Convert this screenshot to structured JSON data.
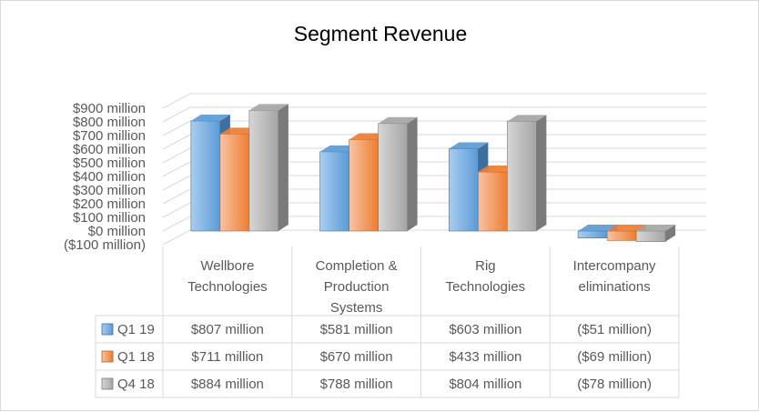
{
  "chart_data": {
    "type": "bar",
    "title": "Segment Revenue",
    "categories": [
      "Wellbore Technologies",
      "Completion & Production Systems",
      "Rig Technologies",
      "Intercompany eliminations"
    ],
    "category_lines": [
      [
        "Wellbore",
        "Technologies"
      ],
      [
        "Completion &",
        "Production",
        "Systems"
      ],
      [
        "Rig",
        "Technologies"
      ],
      [
        "Intercompany",
        "eliminations"
      ]
    ],
    "series": [
      {
        "name": "Q1 19",
        "values": [
          807,
          581,
          603,
          -51
        ],
        "labels": [
          "$807 million",
          "$581 million",
          "$603 million",
          "($51 million)"
        ]
      },
      {
        "name": "Q1 18",
        "values": [
          711,
          670,
          433,
          -69
        ],
        "labels": [
          "$711 million",
          "$670 million",
          "$433 million",
          "($69 million)"
        ]
      },
      {
        "name": "Q4 18",
        "values": [
          884,
          788,
          804,
          -78
        ],
        "labels": [
          "$884 million",
          "$788 million",
          "$804 million",
          "($78 million)"
        ]
      }
    ],
    "yticks": [
      -100,
      0,
      100,
      200,
      300,
      400,
      500,
      600,
      700,
      800,
      900
    ],
    "ytick_labels": [
      "($100 million)",
      "$0 million",
      "$100 million",
      "$200 million",
      "$300 million",
      "$400 million",
      "$500 million",
      "$600 million",
      "$700 million",
      "$800 million",
      "$900 million"
    ],
    "ylim": [
      -100,
      900
    ],
    "unit": "$ million",
    "grid": true,
    "legend": "data-table",
    "style": "3d-clustered-column",
    "colors": {
      "series": [
        "#5b9bd5",
        "#ed7d31",
        "#a5a5a5"
      ],
      "series_light": [
        "#a9cdf1",
        "#f9c3a3",
        "#d6d6d6"
      ],
      "series_dark": [
        "#3f6f9f",
        "#b55d25",
        "#7a7a7a"
      ],
      "gridline": "#d9d9d9",
      "text": "#595959",
      "title": "#595959"
    }
  }
}
